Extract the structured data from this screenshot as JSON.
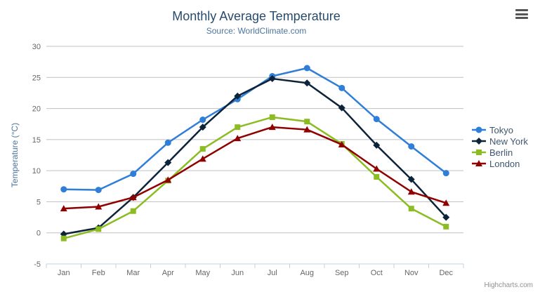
{
  "header": {
    "title": "Monthly Average Temperature",
    "subtitle": "Source: WorldClimate.com"
  },
  "credits": "Highcharts.com",
  "export_menu": {
    "icon": "hamburger-icon"
  },
  "chart_data": {
    "type": "line",
    "title": "Monthly Average Temperature",
    "subtitle": "Source: WorldClimate.com",
    "categories": [
      "Jan",
      "Feb",
      "Mar",
      "Apr",
      "May",
      "Jun",
      "Jul",
      "Aug",
      "Sep",
      "Oct",
      "Nov",
      "Dec"
    ],
    "xlabel": "",
    "ylabel": "Temperature (°C)",
    "ylim": [
      -5,
      30
    ],
    "ytick_interval": 5,
    "yticks": [
      -5,
      0,
      5,
      10,
      15,
      20,
      25,
      30
    ],
    "grid": true,
    "legend_position": "right",
    "series": [
      {
        "name": "Tokyo",
        "color": "#2f7ed8",
        "marker": "circle",
        "values": [
          7.0,
          6.9,
          9.5,
          14.5,
          18.2,
          21.5,
          25.2,
          26.5,
          23.3,
          18.3,
          13.9,
          9.6
        ]
      },
      {
        "name": "New York",
        "color": "#0d233a",
        "marker": "diamond",
        "values": [
          -0.2,
          0.8,
          5.7,
          11.3,
          17.0,
          22.0,
          24.8,
          24.1,
          20.1,
          14.1,
          8.6,
          2.5
        ]
      },
      {
        "name": "Berlin",
        "color": "#8bbc21",
        "marker": "square",
        "values": [
          -0.9,
          0.6,
          3.5,
          8.4,
          13.5,
          17.0,
          18.6,
          17.9,
          14.3,
          9.0,
          3.9,
          1.0
        ]
      },
      {
        "name": "London",
        "color": "#910000",
        "marker": "triangle",
        "values": [
          3.9,
          4.2,
          5.7,
          8.5,
          11.9,
          15.2,
          17.0,
          16.6,
          14.2,
          10.3,
          6.6,
          4.8
        ]
      }
    ],
    "colors": {
      "grid": "#c0c0c0",
      "axis_line": "#c0d0e0",
      "axis_labels": "#666666",
      "yaxis_title": "#4d759e",
      "title": "#274b6d",
      "subtitle": "#4d759e",
      "legend_text": "#3e576f"
    }
  }
}
